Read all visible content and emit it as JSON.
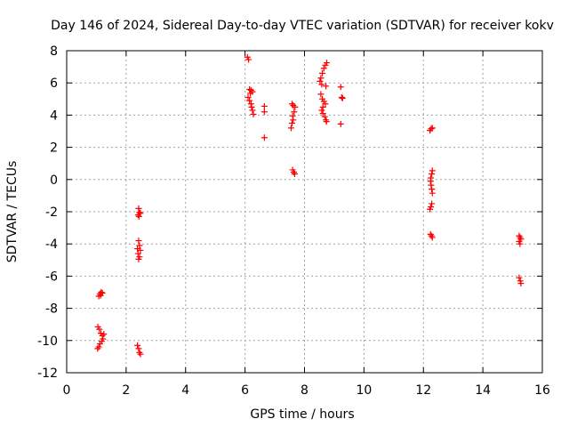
{
  "chart_data": {
    "type": "scatter",
    "title": "Day 146 of 2024, Sidereal Day-to-day VTEC variation (SDTVAR) for receiver kokv",
    "xlabel": "GPS time / hours",
    "ylabel": "SDTVAR / TECUs",
    "xlim": [
      0,
      16
    ],
    "ylim": [
      -12,
      8
    ],
    "xticks": [
      0,
      2,
      4,
      6,
      8,
      10,
      12,
      14,
      16
    ],
    "yticks": [
      -12,
      -10,
      -8,
      -6,
      -4,
      -2,
      0,
      2,
      4,
      6,
      8
    ],
    "grid": true,
    "marker": "+",
    "series": [
      {
        "name": "SDTVAR",
        "color": "#ff0000",
        "points": [
          [
            1.08,
            -7.25
          ],
          [
            1.12,
            -7.1
          ],
          [
            1.16,
            -7.0
          ],
          [
            1.2,
            -7.05
          ],
          [
            1.14,
            -7.2
          ],
          [
            1.05,
            -9.15
          ],
          [
            1.1,
            -9.3
          ],
          [
            1.15,
            -9.55
          ],
          [
            1.2,
            -9.7
          ],
          [
            1.22,
            -9.9
          ],
          [
            1.18,
            -10.05
          ],
          [
            1.12,
            -10.2
          ],
          [
            1.08,
            -10.4
          ],
          [
            1.04,
            -10.5
          ],
          [
            1.25,
            -9.6
          ],
          [
            2.42,
            -1.8
          ],
          [
            2.45,
            -2.05
          ],
          [
            2.4,
            -2.2
          ],
          [
            2.48,
            -2.1
          ],
          [
            2.43,
            -2.3
          ],
          [
            2.42,
            -3.8
          ],
          [
            2.45,
            -4.1
          ],
          [
            2.38,
            -4.3
          ],
          [
            2.48,
            -4.4
          ],
          [
            2.4,
            -4.6
          ],
          [
            2.45,
            -4.8
          ],
          [
            2.42,
            -4.95
          ],
          [
            2.38,
            -10.3
          ],
          [
            2.42,
            -10.5
          ],
          [
            2.45,
            -10.75
          ],
          [
            2.48,
            -10.85
          ],
          [
            6.08,
            7.6
          ],
          [
            6.12,
            7.45
          ],
          [
            6.15,
            5.6
          ],
          [
            6.2,
            5.55
          ],
          [
            6.25,
            5.45
          ],
          [
            6.18,
            5.35
          ],
          [
            6.1,
            5.1
          ],
          [
            6.15,
            4.9
          ],
          [
            6.2,
            4.7
          ],
          [
            6.22,
            4.5
          ],
          [
            6.25,
            4.3
          ],
          [
            6.28,
            4.05
          ],
          [
            6.65,
            4.55
          ],
          [
            6.65,
            4.2
          ],
          [
            6.65,
            2.6
          ],
          [
            7.58,
            4.7
          ],
          [
            7.62,
            4.6
          ],
          [
            7.68,
            4.5
          ],
          [
            7.65,
            4.2
          ],
          [
            7.6,
            3.95
          ],
          [
            7.62,
            3.7
          ],
          [
            7.58,
            3.5
          ],
          [
            7.55,
            3.2
          ],
          [
            7.6,
            0.6
          ],
          [
            7.64,
            0.45
          ],
          [
            7.67,
            0.35
          ],
          [
            8.52,
            6.1
          ],
          [
            8.55,
            6.3
          ],
          [
            8.6,
            6.6
          ],
          [
            8.65,
            6.9
          ],
          [
            8.7,
            7.1
          ],
          [
            8.75,
            7.25
          ],
          [
            8.72,
            5.8
          ],
          [
            8.58,
            5.9
          ],
          [
            8.55,
            5.3
          ],
          [
            8.6,
            5.0
          ],
          [
            8.65,
            4.85
          ],
          [
            8.7,
            4.7
          ],
          [
            8.62,
            4.5
          ],
          [
            8.58,
            4.3
          ],
          [
            8.62,
            4.1
          ],
          [
            8.68,
            3.9
          ],
          [
            8.72,
            3.7
          ],
          [
            8.74,
            3.6
          ],
          [
            9.22,
            5.75
          ],
          [
            9.25,
            5.1
          ],
          [
            9.28,
            5.05
          ],
          [
            9.22,
            3.45
          ],
          [
            12.22,
            3.05
          ],
          [
            12.26,
            3.15
          ],
          [
            12.3,
            3.2
          ],
          [
            12.3,
            0.55
          ],
          [
            12.28,
            0.35
          ],
          [
            12.25,
            0.1
          ],
          [
            12.24,
            -0.1
          ],
          [
            12.26,
            -0.35
          ],
          [
            12.28,
            -0.6
          ],
          [
            12.3,
            -0.85
          ],
          [
            12.28,
            -1.5
          ],
          [
            12.25,
            -1.7
          ],
          [
            12.22,
            -1.85
          ],
          [
            12.24,
            -3.4
          ],
          [
            12.27,
            -3.5
          ],
          [
            12.3,
            -3.6
          ],
          [
            15.22,
            -3.5
          ],
          [
            15.25,
            -3.6
          ],
          [
            15.28,
            -3.7
          ],
          [
            15.22,
            -3.85
          ],
          [
            15.25,
            -4.0
          ],
          [
            15.22,
            -6.1
          ],
          [
            15.26,
            -6.3
          ],
          [
            15.28,
            -6.45
          ]
        ]
      }
    ]
  }
}
